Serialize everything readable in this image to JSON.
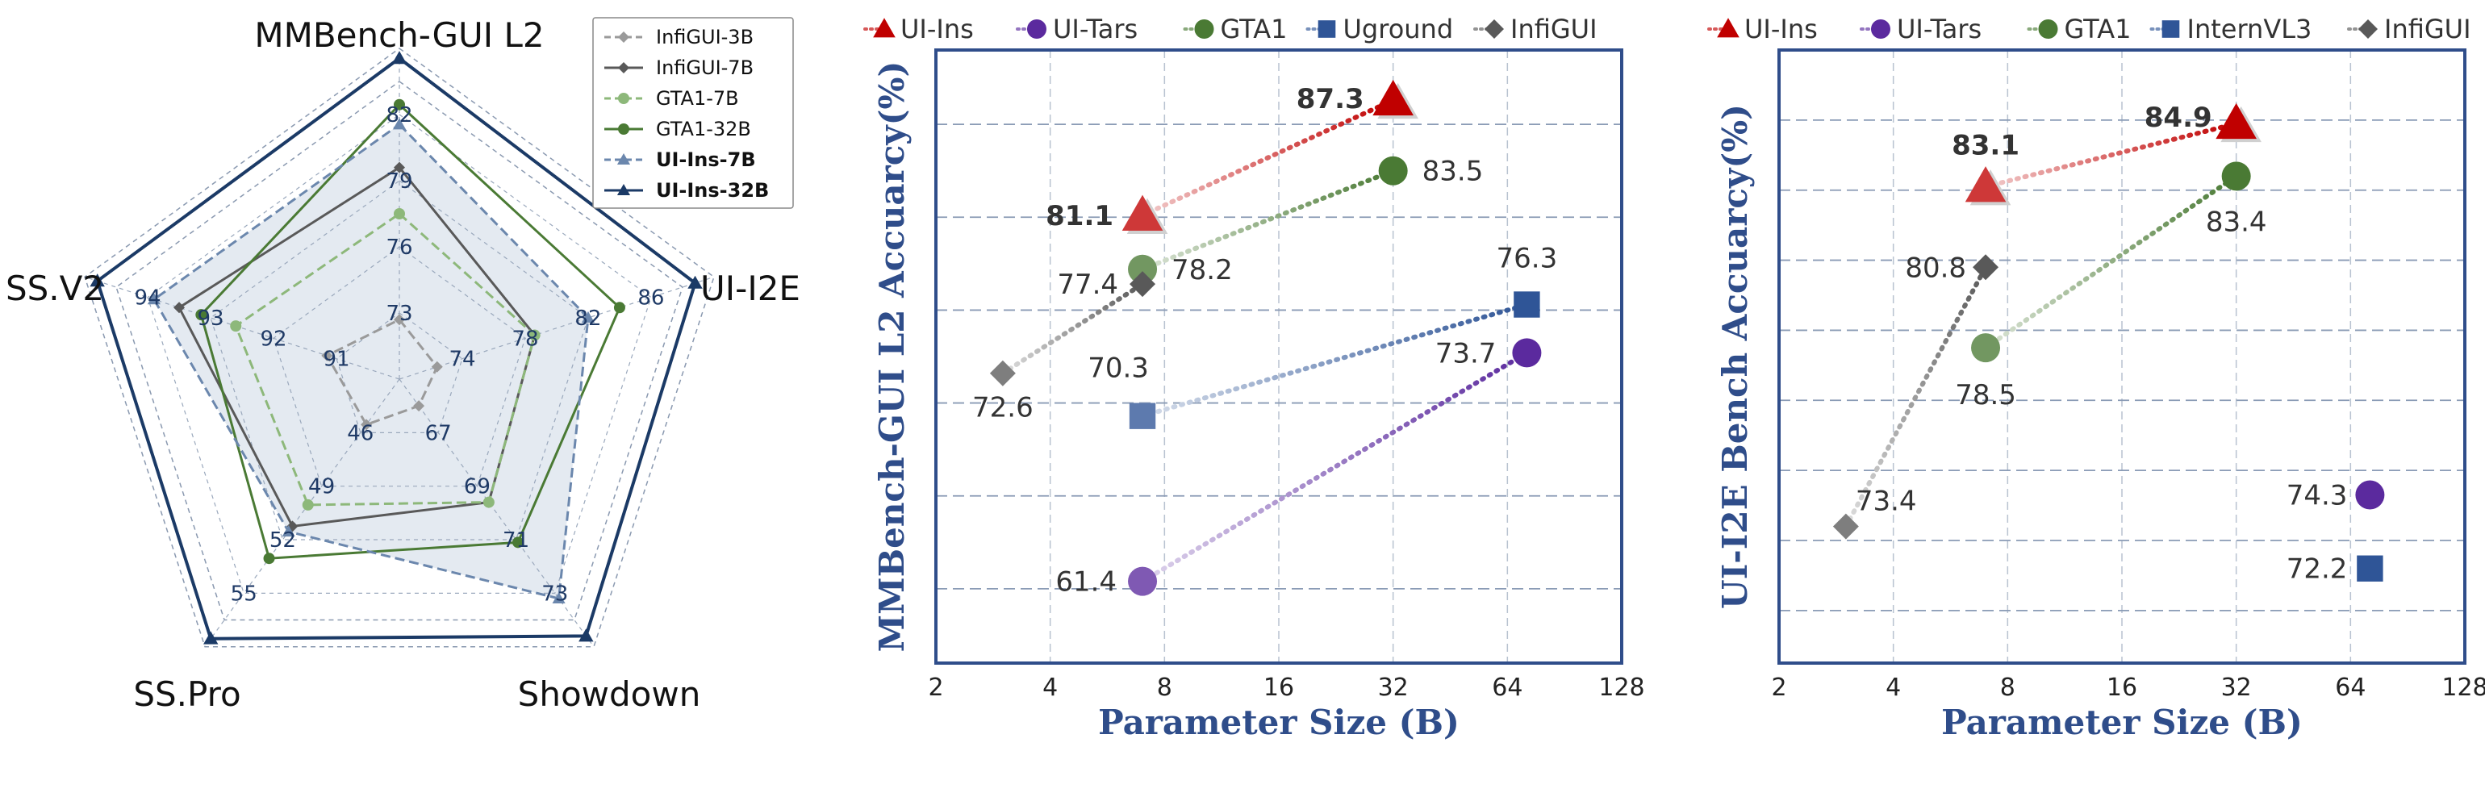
{
  "chart_data": [
    {
      "type": "radar",
      "axes": [
        {
          "label": "MMBench-GUI L2",
          "ticks": [
            "73",
            "76",
            "79",
            "82"
          ]
        },
        {
          "label": "UI-I2E",
          "ticks": [
            "74",
            "78",
            "82",
            "86"
          ]
        },
        {
          "label": "Showdown",
          "ticks": [
            "67",
            "69",
            "71",
            "73"
          ]
        },
        {
          "label": "SS.Pro",
          "ticks": [
            "46",
            "49",
            "52",
            "55"
          ]
        },
        {
          "label": "SS.V2",
          "ticks": [
            "91",
            "92",
            "93",
            "94"
          ]
        }
      ],
      "scale": [
        0.2,
        0.4,
        0.6,
        0.8
      ],
      "series": [
        {
          "name": "InfiGUI-3B",
          "color": "#9a9a9a",
          "dashed": true,
          "marker": "diamond",
          "values": [
            0.18,
            0.12,
            0.1,
            0.17,
            0.23
          ],
          "fill": false
        },
        {
          "name": "InfiGUI-7B",
          "color": "#595959",
          "dashed": false,
          "marker": "diamond",
          "values": [
            0.64,
            0.43,
            0.46,
            0.55,
            0.7
          ],
          "fill": false
        },
        {
          "name": "GTA1-7B",
          "color": "#8db87a",
          "dashed": true,
          "marker": "circle",
          "values": [
            0.5,
            0.43,
            0.46,
            0.47,
            0.52
          ],
          "fill": false
        },
        {
          "name": "GTA1-32B",
          "color": "#4a7a34",
          "dashed": false,
          "marker": "circle",
          "values": [
            0.83,
            0.7,
            0.61,
            0.67,
            0.63
          ],
          "fill": false
        },
        {
          "name": "UI-Ins-7B",
          "color": "#6b87ad",
          "dashed": true,
          "marker": "triangle",
          "values": [
            0.77,
            0.6,
            0.82,
            0.57,
            0.78
          ],
          "fill": true
        },
        {
          "name": "UI-Ins-32B",
          "color": "#1b3a66",
          "dashed": false,
          "marker": "triangle",
          "values": [
            0.97,
            0.94,
            0.96,
            0.97,
            0.96
          ],
          "fill": false
        }
      ]
    },
    {
      "type": "scatter",
      "ylabel": "MMBench-GUI L2 Accuarcy(%)",
      "xlabel": "Parameter Size (B)",
      "x_scale": "log2",
      "xticks": [
        2,
        4,
        8,
        16,
        32,
        64,
        128
      ],
      "xlim": [
        2,
        128
      ],
      "ylim": [
        57,
        90
      ],
      "yticks_grid": [
        61,
        66,
        71,
        76,
        81,
        86
      ],
      "legend": [
        {
          "name": "UI-Ins",
          "color": "#c00000",
          "marker": "triangle"
        },
        {
          "name": "UI-Tars",
          "color": "#5b2a9e",
          "marker": "circle"
        },
        {
          "name": "GTA1",
          "color": "#4a7a34",
          "marker": "circle"
        },
        {
          "name": "Uground",
          "color": "#2f5597",
          "marker": "square"
        },
        {
          "name": "InfiGUI",
          "color": "#595959",
          "marker": "diamond"
        }
      ],
      "series": [
        {
          "name": "UI-Ins",
          "color": "#c00000",
          "marker": "triangle",
          "points": [
            {
              "x": 7,
              "y": 81.1,
              "label": "81.1"
            },
            {
              "x": 32,
              "y": 87.3,
              "label": "87.3"
            }
          ]
        },
        {
          "name": "GTA1",
          "color": "#4a7a34",
          "marker": "circle",
          "points": [
            {
              "x": 7,
              "y": 78.2,
              "label": "78.2"
            },
            {
              "x": 32,
              "y": 83.5,
              "label": "83.5"
            }
          ]
        },
        {
          "name": "InfiGUI",
          "color": "#595959",
          "marker": "diamond",
          "points": [
            {
              "x": 3,
              "y": 72.6,
              "label": "72.6"
            },
            {
              "x": 7,
              "y": 77.4,
              "label": "77.4"
            }
          ]
        },
        {
          "name": "Uground",
          "color": "#2f5597",
          "marker": "square",
          "points": [
            {
              "x": 7,
              "y": 70.3,
              "label": "70.3"
            },
            {
              "x": 72,
              "y": 76.3,
              "label": "76.3"
            }
          ]
        },
        {
          "name": "UI-Tars",
          "color": "#5b2a9e",
          "marker": "circle",
          "points": [
            {
              "x": 7,
              "y": 61.4,
              "label": "61.4"
            },
            {
              "x": 72,
              "y": 73.7,
              "label": "73.7"
            }
          ]
        }
      ]
    },
    {
      "type": "scatter",
      "ylabel": "UI-I2E Bench Accuarcy(%)",
      "xlabel": "Parameter Size (B)",
      "x_scale": "log2",
      "xticks": [
        2,
        4,
        8,
        16,
        32,
        64,
        128
      ],
      "xlim": [
        2,
        128
      ],
      "ylim": [
        69.5,
        87
      ],
      "yticks_grid": [
        71,
        73,
        75,
        77,
        79,
        81,
        83,
        85
      ],
      "legend": [
        {
          "name": "UI-Ins",
          "color": "#c00000",
          "marker": "triangle"
        },
        {
          "name": "UI-Tars",
          "color": "#5b2a9e",
          "marker": "circle"
        },
        {
          "name": "GTA1",
          "color": "#4a7a34",
          "marker": "circle"
        },
        {
          "name": "InternVL3",
          "color": "#2f5597",
          "marker": "square"
        },
        {
          "name": "InfiGUI",
          "color": "#595959",
          "marker": "diamond"
        }
      ],
      "series": [
        {
          "name": "UI-Ins",
          "color": "#c00000",
          "marker": "triangle",
          "points": [
            {
              "x": 7,
              "y": 83.1,
              "label": "83.1"
            },
            {
              "x": 32,
              "y": 84.9,
              "label": "84.9"
            }
          ]
        },
        {
          "name": "GTA1",
          "color": "#4a7a34",
          "marker": "circle",
          "points": [
            {
              "x": 7,
              "y": 78.5,
              "label": "78.5"
            },
            {
              "x": 32,
              "y": 83.4,
              "label": "83.4"
            }
          ]
        },
        {
          "name": "InfiGUI",
          "color": "#595959",
          "marker": "diamond",
          "points": [
            {
              "x": 3,
              "y": 73.4,
              "label": "73.4"
            },
            {
              "x": 7,
              "y": 80.8,
              "label": "80.8"
            }
          ]
        },
        {
          "name": "UI-Tars",
          "color": "#5b2a9e",
          "marker": "circle",
          "points": [
            {
              "x": 72,
              "y": 74.3,
              "label": "74.3"
            }
          ]
        },
        {
          "name": "InternVL3",
          "color": "#2f5597",
          "marker": "square",
          "points": [
            {
              "x": 72,
              "y": 72.2,
              "label": "72.2"
            }
          ]
        }
      ]
    }
  ]
}
